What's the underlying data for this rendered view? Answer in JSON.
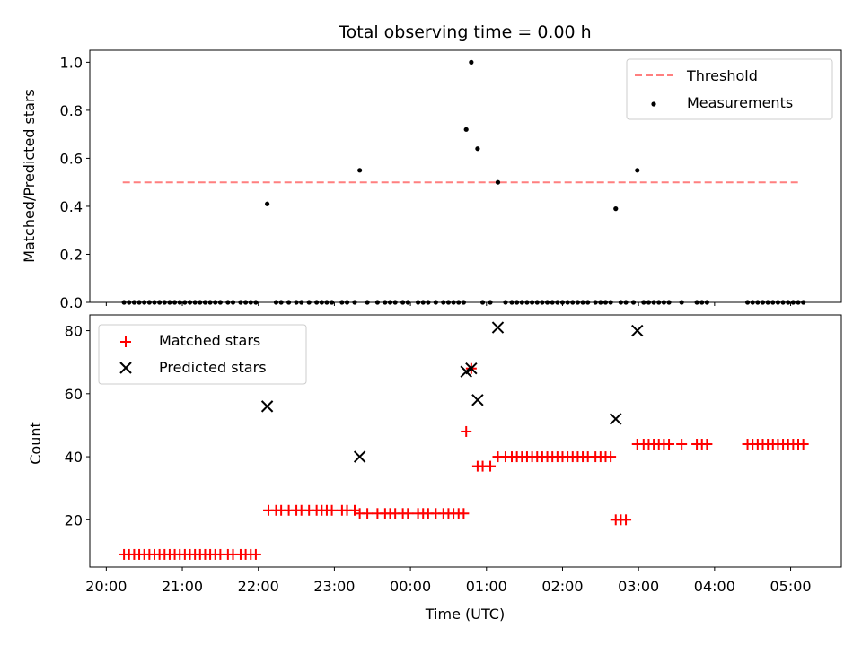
{
  "chart_data": [
    {
      "type": "scatter",
      "title": "Total observing time = 0.00 h",
      "xlabel": "",
      "ylabel": "Matched/Predicted stars",
      "xlim": [
        "19:47",
        "05:40"
      ],
      "ylim": [
        0,
        1.05
      ],
      "yticks": [
        0.0,
        0.2,
        0.4,
        0.6,
        0.8,
        1.0
      ],
      "ytick_labels": [
        "0.0",
        "0.2",
        "0.4",
        "0.6",
        "0.8",
        "1.0"
      ],
      "legend": {
        "position": "top-right",
        "entries": [
          "Threshold",
          "Measurements"
        ]
      },
      "threshold": {
        "name": "Threshold",
        "value": 0.5,
        "x_range": [
          "20:13",
          "05:08"
        ],
        "color": "#ff7f7f",
        "style": "dashed"
      },
      "measurements": {
        "name": "Measurements",
        "color": "#000000",
        "points": [
          {
            "x": "20:14",
            "y": 0.0
          },
          {
            "x": "20:18",
            "y": 0.0
          },
          {
            "x": "20:22",
            "y": 0.0
          },
          {
            "x": "20:26",
            "y": 0.0
          },
          {
            "x": "20:30",
            "y": 0.0
          },
          {
            "x": "20:34",
            "y": 0.0
          },
          {
            "x": "20:38",
            "y": 0.0
          },
          {
            "x": "20:42",
            "y": 0.0
          },
          {
            "x": "20:46",
            "y": 0.0
          },
          {
            "x": "20:50",
            "y": 0.0
          },
          {
            "x": "20:54",
            "y": 0.0
          },
          {
            "x": "20:58",
            "y": 0.0
          },
          {
            "x": "21:02",
            "y": 0.0
          },
          {
            "x": "21:06",
            "y": 0.0
          },
          {
            "x": "21:10",
            "y": 0.0
          },
          {
            "x": "21:14",
            "y": 0.0
          },
          {
            "x": "21:18",
            "y": 0.0
          },
          {
            "x": "21:22",
            "y": 0.0
          },
          {
            "x": "21:26",
            "y": 0.0
          },
          {
            "x": "21:30",
            "y": 0.0
          },
          {
            "x": "21:36",
            "y": 0.0
          },
          {
            "x": "21:40",
            "y": 0.0
          },
          {
            "x": "21:46",
            "y": 0.0
          },
          {
            "x": "21:50",
            "y": 0.0
          },
          {
            "x": "21:54",
            "y": 0.0
          },
          {
            "x": "21:58",
            "y": 0.0
          },
          {
            "x": "22:07",
            "y": 0.41
          },
          {
            "x": "22:14",
            "y": 0.0
          },
          {
            "x": "22:18",
            "y": 0.0
          },
          {
            "x": "22:24",
            "y": 0.0
          },
          {
            "x": "22:30",
            "y": 0.0
          },
          {
            "x": "22:34",
            "y": 0.0
          },
          {
            "x": "22:40",
            "y": 0.0
          },
          {
            "x": "22:46",
            "y": 0.0
          },
          {
            "x": "22:50",
            "y": 0.0
          },
          {
            "x": "22:54",
            "y": 0.0
          },
          {
            "x": "22:58",
            "y": 0.0
          },
          {
            "x": "23:06",
            "y": 0.0
          },
          {
            "x": "23:10",
            "y": 0.0
          },
          {
            "x": "23:16",
            "y": 0.0
          },
          {
            "x": "23:20",
            "y": 0.55
          },
          {
            "x": "23:26",
            "y": 0.0
          },
          {
            "x": "23:34",
            "y": 0.0
          },
          {
            "x": "23:40",
            "y": 0.0
          },
          {
            "x": "23:44",
            "y": 0.0
          },
          {
            "x": "23:48",
            "y": 0.0
          },
          {
            "x": "23:54",
            "y": 0.0
          },
          {
            "x": "23:58",
            "y": 0.0
          },
          {
            "x": "00:06",
            "y": 0.0
          },
          {
            "x": "00:10",
            "y": 0.0
          },
          {
            "x": "00:14",
            "y": 0.0
          },
          {
            "x": "00:20",
            "y": 0.0
          },
          {
            "x": "00:26",
            "y": 0.0
          },
          {
            "x": "00:30",
            "y": 0.0
          },
          {
            "x": "00:34",
            "y": 0.0
          },
          {
            "x": "00:38",
            "y": 0.0
          },
          {
            "x": "00:42",
            "y": 0.0
          },
          {
            "x": "00:44",
            "y": 0.72
          },
          {
            "x": "00:48",
            "y": 1.0
          },
          {
            "x": "00:53",
            "y": 0.64
          },
          {
            "x": "00:57",
            "y": 0.0
          },
          {
            "x": "01:03",
            "y": 0.0
          },
          {
            "x": "01:09",
            "y": 0.5
          },
          {
            "x": "01:15",
            "y": 0.0
          },
          {
            "x": "01:20",
            "y": 0.0
          },
          {
            "x": "01:24",
            "y": 0.0
          },
          {
            "x": "01:28",
            "y": 0.0
          },
          {
            "x": "01:32",
            "y": 0.0
          },
          {
            "x": "01:36",
            "y": 0.0
          },
          {
            "x": "01:40",
            "y": 0.0
          },
          {
            "x": "01:44",
            "y": 0.0
          },
          {
            "x": "01:48",
            "y": 0.0
          },
          {
            "x": "01:52",
            "y": 0.0
          },
          {
            "x": "01:56",
            "y": 0.0
          },
          {
            "x": "02:00",
            "y": 0.0
          },
          {
            "x": "02:04",
            "y": 0.0
          },
          {
            "x": "02:08",
            "y": 0.0
          },
          {
            "x": "02:12",
            "y": 0.0
          },
          {
            "x": "02:16",
            "y": 0.0
          },
          {
            "x": "02:20",
            "y": 0.0
          },
          {
            "x": "02:26",
            "y": 0.0
          },
          {
            "x": "02:30",
            "y": 0.0
          },
          {
            "x": "02:34",
            "y": 0.0
          },
          {
            "x": "02:38",
            "y": 0.0
          },
          {
            "x": "02:42",
            "y": 0.39
          },
          {
            "x": "02:46",
            "y": 0.0
          },
          {
            "x": "02:50",
            "y": 0.0
          },
          {
            "x": "02:56",
            "y": 0.0
          },
          {
            "x": "02:59",
            "y": 0.55
          },
          {
            "x": "03:04",
            "y": 0.0
          },
          {
            "x": "03:08",
            "y": 0.0
          },
          {
            "x": "03:12",
            "y": 0.0
          },
          {
            "x": "03:16",
            "y": 0.0
          },
          {
            "x": "03:20",
            "y": 0.0
          },
          {
            "x": "03:24",
            "y": 0.0
          },
          {
            "x": "03:34",
            "y": 0.0
          },
          {
            "x": "03:46",
            "y": 0.0
          },
          {
            "x": "03:50",
            "y": 0.0
          },
          {
            "x": "03:54",
            "y": 0.0
          },
          {
            "x": "04:26",
            "y": 0.0
          },
          {
            "x": "04:30",
            "y": 0.0
          },
          {
            "x": "04:34",
            "y": 0.0
          },
          {
            "x": "04:38",
            "y": 0.0
          },
          {
            "x": "04:42",
            "y": 0.0
          },
          {
            "x": "04:46",
            "y": 0.0
          },
          {
            "x": "04:50",
            "y": 0.0
          },
          {
            "x": "04:54",
            "y": 0.0
          },
          {
            "x": "04:58",
            "y": 0.0
          },
          {
            "x": "05:02",
            "y": 0.0
          },
          {
            "x": "05:06",
            "y": 0.0
          },
          {
            "x": "05:10",
            "y": 0.0
          }
        ]
      }
    },
    {
      "type": "scatter",
      "title": "",
      "xlabel": "Time (UTC)",
      "ylabel": "Count",
      "xlim": [
        "19:47",
        "05:40"
      ],
      "ylim": [
        5,
        85
      ],
      "yticks": [
        20,
        40,
        60,
        80
      ],
      "ytick_labels": [
        "20",
        "40",
        "60",
        "80"
      ],
      "xticks": [
        "20:00",
        "21:00",
        "22:00",
        "23:00",
        "00:00",
        "01:00",
        "02:00",
        "03:00",
        "04:00",
        "05:00"
      ],
      "xtick_labels": [
        "20:00",
        "21:00",
        "22:00",
        "23:00",
        "00:00",
        "01:00",
        "02:00",
        "03:00",
        "04:00",
        "05:00"
      ],
      "legend": {
        "position": "top-left",
        "entries": [
          "Matched stars",
          "Predicted stars"
        ]
      },
      "series": [
        {
          "name": "Matched stars",
          "marker": "plus",
          "color": "#ff0000",
          "points": [
            {
              "x": "20:14",
              "y": 9
            },
            {
              "x": "20:18",
              "y": 9
            },
            {
              "x": "20:22",
              "y": 9
            },
            {
              "x": "20:26",
              "y": 9
            },
            {
              "x": "20:30",
              "y": 9
            },
            {
              "x": "20:34",
              "y": 9
            },
            {
              "x": "20:38",
              "y": 9
            },
            {
              "x": "20:42",
              "y": 9
            },
            {
              "x": "20:46",
              "y": 9
            },
            {
              "x": "20:50",
              "y": 9
            },
            {
              "x": "20:54",
              "y": 9
            },
            {
              "x": "20:58",
              "y": 9
            },
            {
              "x": "21:02",
              "y": 9
            },
            {
              "x": "21:06",
              "y": 9
            },
            {
              "x": "21:10",
              "y": 9
            },
            {
              "x": "21:14",
              "y": 9
            },
            {
              "x": "21:18",
              "y": 9
            },
            {
              "x": "21:22",
              "y": 9
            },
            {
              "x": "21:26",
              "y": 9
            },
            {
              "x": "21:30",
              "y": 9
            },
            {
              "x": "21:36",
              "y": 9
            },
            {
              "x": "21:40",
              "y": 9
            },
            {
              "x": "21:46",
              "y": 9
            },
            {
              "x": "21:50",
              "y": 9
            },
            {
              "x": "21:54",
              "y": 9
            },
            {
              "x": "21:58",
              "y": 9
            },
            {
              "x": "22:08",
              "y": 23
            },
            {
              "x": "22:14",
              "y": 23
            },
            {
              "x": "22:18",
              "y": 23
            },
            {
              "x": "22:24",
              "y": 23
            },
            {
              "x": "22:30",
              "y": 23
            },
            {
              "x": "22:34",
              "y": 23
            },
            {
              "x": "22:40",
              "y": 23
            },
            {
              "x": "22:46",
              "y": 23
            },
            {
              "x": "22:50",
              "y": 23
            },
            {
              "x": "22:54",
              "y": 23
            },
            {
              "x": "22:58",
              "y": 23
            },
            {
              "x": "23:06",
              "y": 23
            },
            {
              "x": "23:10",
              "y": 23
            },
            {
              "x": "23:16",
              "y": 23
            },
            {
              "x": "23:20",
              "y": 22
            },
            {
              "x": "23:26",
              "y": 22
            },
            {
              "x": "23:34",
              "y": 22
            },
            {
              "x": "23:40",
              "y": 22
            },
            {
              "x": "23:44",
              "y": 22
            },
            {
              "x": "23:48",
              "y": 22
            },
            {
              "x": "23:54",
              "y": 22
            },
            {
              "x": "23:58",
              "y": 22
            },
            {
              "x": "00:06",
              "y": 22
            },
            {
              "x": "00:10",
              "y": 22
            },
            {
              "x": "00:14",
              "y": 22
            },
            {
              "x": "00:20",
              "y": 22
            },
            {
              "x": "00:26",
              "y": 22
            },
            {
              "x": "00:30",
              "y": 22
            },
            {
              "x": "00:34",
              "y": 22
            },
            {
              "x": "00:38",
              "y": 22
            },
            {
              "x": "00:42",
              "y": 22
            },
            {
              "x": "00:44",
              "y": 48
            },
            {
              "x": "00:48",
              "y": 68
            },
            {
              "x": "00:53",
              "y": 37
            },
            {
              "x": "00:57",
              "y": 37
            },
            {
              "x": "01:03",
              "y": 37
            },
            {
              "x": "01:09",
              "y": 40
            },
            {
              "x": "01:15",
              "y": 40
            },
            {
              "x": "01:20",
              "y": 40
            },
            {
              "x": "01:24",
              "y": 40
            },
            {
              "x": "01:28",
              "y": 40
            },
            {
              "x": "01:32",
              "y": 40
            },
            {
              "x": "01:36",
              "y": 40
            },
            {
              "x": "01:40",
              "y": 40
            },
            {
              "x": "01:44",
              "y": 40
            },
            {
              "x": "01:48",
              "y": 40
            },
            {
              "x": "01:52",
              "y": 40
            },
            {
              "x": "01:56",
              "y": 40
            },
            {
              "x": "02:00",
              "y": 40
            },
            {
              "x": "02:04",
              "y": 40
            },
            {
              "x": "02:08",
              "y": 40
            },
            {
              "x": "02:12",
              "y": 40
            },
            {
              "x": "02:16",
              "y": 40
            },
            {
              "x": "02:20",
              "y": 40
            },
            {
              "x": "02:26",
              "y": 40
            },
            {
              "x": "02:30",
              "y": 40
            },
            {
              "x": "02:34",
              "y": 40
            },
            {
              "x": "02:38",
              "y": 40
            },
            {
              "x": "02:42",
              "y": 20
            },
            {
              "x": "02:46",
              "y": 20
            },
            {
              "x": "02:50",
              "y": 20
            },
            {
              "x": "02:59",
              "y": 44
            },
            {
              "x": "03:04",
              "y": 44
            },
            {
              "x": "03:08",
              "y": 44
            },
            {
              "x": "03:12",
              "y": 44
            },
            {
              "x": "03:16",
              "y": 44
            },
            {
              "x": "03:20",
              "y": 44
            },
            {
              "x": "03:24",
              "y": 44
            },
            {
              "x": "03:34",
              "y": 44
            },
            {
              "x": "03:46",
              "y": 44
            },
            {
              "x": "03:50",
              "y": 44
            },
            {
              "x": "03:54",
              "y": 44
            },
            {
              "x": "04:26",
              "y": 44
            },
            {
              "x": "04:30",
              "y": 44
            },
            {
              "x": "04:34",
              "y": 44
            },
            {
              "x": "04:38",
              "y": 44
            },
            {
              "x": "04:42",
              "y": 44
            },
            {
              "x": "04:46",
              "y": 44
            },
            {
              "x": "04:50",
              "y": 44
            },
            {
              "x": "04:54",
              "y": 44
            },
            {
              "x": "04:58",
              "y": 44
            },
            {
              "x": "05:02",
              "y": 44
            },
            {
              "x": "05:06",
              "y": 44
            },
            {
              "x": "05:10",
              "y": 44
            }
          ]
        },
        {
          "name": "Predicted stars",
          "marker": "x",
          "color": "#000000",
          "points": [
            {
              "x": "22:07",
              "y": 56
            },
            {
              "x": "23:20",
              "y": 40
            },
            {
              "x": "00:44",
              "y": 67
            },
            {
              "x": "00:48",
              "y": 68
            },
            {
              "x": "00:53",
              "y": 58
            },
            {
              "x": "01:09",
              "y": 81
            },
            {
              "x": "02:42",
              "y": 52
            },
            {
              "x": "02:59",
              "y": 80
            }
          ]
        }
      ]
    }
  ]
}
